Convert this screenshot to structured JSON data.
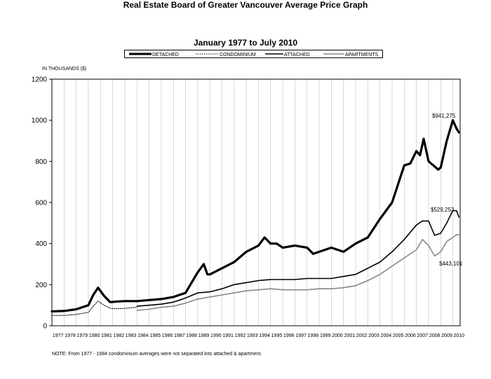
{
  "chart_data": {
    "type": "line",
    "title": "Real Estate Board of Greater Vancouver Average Price Graph",
    "subtitle": "January 1977 to July 2010",
    "ylabel": "IN THOUSANDS ($)",
    "ylim": [
      0,
      1200
    ],
    "yticks": [
      "0",
      "200",
      "400",
      "600",
      "800",
      "1000",
      "1200"
    ],
    "xlim": [
      1977.0,
      2010.6
    ],
    "xticks": [
      "1977",
      "1978",
      "1979",
      "1980",
      "1981",
      "1982",
      "1983",
      "1984",
      "1985",
      "1986",
      "1987",
      "1988",
      "1989",
      "1990",
      "1991",
      "1992",
      "1993",
      "1994",
      "1995",
      "1996",
      "1997",
      "1998",
      "1999",
      "2000",
      "2001",
      "2002",
      "2003",
      "2004",
      "2005",
      "2006",
      "2007",
      "2008",
      "2009",
      "2010"
    ],
    "grid": "vertical",
    "legend_position": "top",
    "series": [
      {
        "name": "DETACHED",
        "color": "#000000",
        "style": "thick",
        "x": [
          1977.0,
          1978.0,
          1979.0,
          1980.0,
          1980.4,
          1980.8,
          1981.3,
          1981.8,
          1982.4,
          1983.0,
          1984.0,
          1985.0,
          1986.0,
          1987.0,
          1988.0,
          1988.8,
          1989.0,
          1989.5,
          1989.8,
          1990.0,
          1991.0,
          1992.0,
          1993.0,
          1994.0,
          1994.5,
          1995.0,
          1995.5,
          1996.0,
          1997.0,
          1998.0,
          1998.5,
          1999.0,
          2000.0,
          2001.0,
          2002.0,
          2003.0,
          2004.0,
          2005.0,
          2006.0,
          2006.5,
          2007.0,
          2007.3,
          2007.6,
          2008.0,
          2008.4,
          2008.8,
          2009.0,
          2009.5,
          2010.0,
          2010.3,
          2010.5
        ],
        "values": [
          70,
          72,
          80,
          100,
          150,
          185,
          145,
          115,
          118,
          120,
          120,
          125,
          130,
          140,
          160,
          240,
          260,
          300,
          250,
          250,
          280,
          310,
          360,
          390,
          430,
          400,
          400,
          380,
          390,
          380,
          350,
          360,
          380,
          360,
          400,
          430,
          520,
          600,
          780,
          790,
          850,
          830,
          910,
          800,
          780,
          760,
          770,
          900,
          1000,
          960,
          941
        ]
      },
      {
        "name": "CONDOMINIUM",
        "color": "#000000",
        "style": "dotted",
        "x": [
          1977.0,
          1978.0,
          1979.0,
          1980.0,
          1980.4,
          1980.8,
          1981.3,
          1981.8,
          1982.4,
          1983.0,
          1984.0
        ],
        "values": [
          50,
          50,
          55,
          65,
          95,
          120,
          100,
          85,
          83,
          85,
          90
        ]
      },
      {
        "name": "ATTACHED",
        "color": "#000000",
        "style": "solid",
        "x": [
          1984.0,
          1985.0,
          1986.0,
          1987.0,
          1988.0,
          1989.0,
          1990.0,
          1991.0,
          1992.0,
          1993.0,
          1994.0,
          1995.0,
          1996.0,
          1997.0,
          1998.0,
          1999.0,
          2000.0,
          2001.0,
          2002.0,
          2003.0,
          2004.0,
          2005.0,
          2006.0,
          2007.0,
          2007.5,
          2008.0,
          2008.5,
          2009.0,
          2009.5,
          2010.0,
          2010.3,
          2010.5
        ],
        "values": [
          95,
          100,
          105,
          115,
          135,
          160,
          165,
          180,
          200,
          210,
          220,
          225,
          225,
          225,
          230,
          230,
          230,
          240,
          250,
          280,
          310,
          360,
          420,
          490,
          510,
          510,
          440,
          450,
          500,
          560,
          560,
          529
        ]
      },
      {
        "name": "APARTMENTS",
        "color": "#888888",
        "style": "solid",
        "x": [
          1984.0,
          1985.0,
          1986.0,
          1987.0,
          1988.0,
          1989.0,
          1990.0,
          1991.0,
          1992.0,
          1993.0,
          1994.0,
          1995.0,
          1996.0,
          1997.0,
          1998.0,
          1999.0,
          2000.0,
          2001.0,
          2002.0,
          2003.0,
          2004.0,
          2005.0,
          2006.0,
          2007.0,
          2007.5,
          2008.0,
          2008.5,
          2009.0,
          2009.5,
          2010.0,
          2010.3,
          2010.5
        ],
        "values": [
          75,
          80,
          90,
          95,
          110,
          130,
          140,
          150,
          160,
          170,
          175,
          180,
          175,
          175,
          175,
          180,
          180,
          185,
          195,
          220,
          250,
          290,
          330,
          370,
          420,
          390,
          340,
          360,
          410,
          430,
          443,
          443
        ]
      }
    ],
    "annotations": [
      "$941,275",
      "$529,253",
      "$443,101"
    ]
  },
  "legend": {
    "detached": "DETACHED",
    "condominium": "CONDOMINIUM",
    "attached": "ATTACHED",
    "apartments": "APARTMENTS"
  },
  "note": "NOTE:  From 1977 - 1984 condominium averages were not separated into attached & apartment."
}
